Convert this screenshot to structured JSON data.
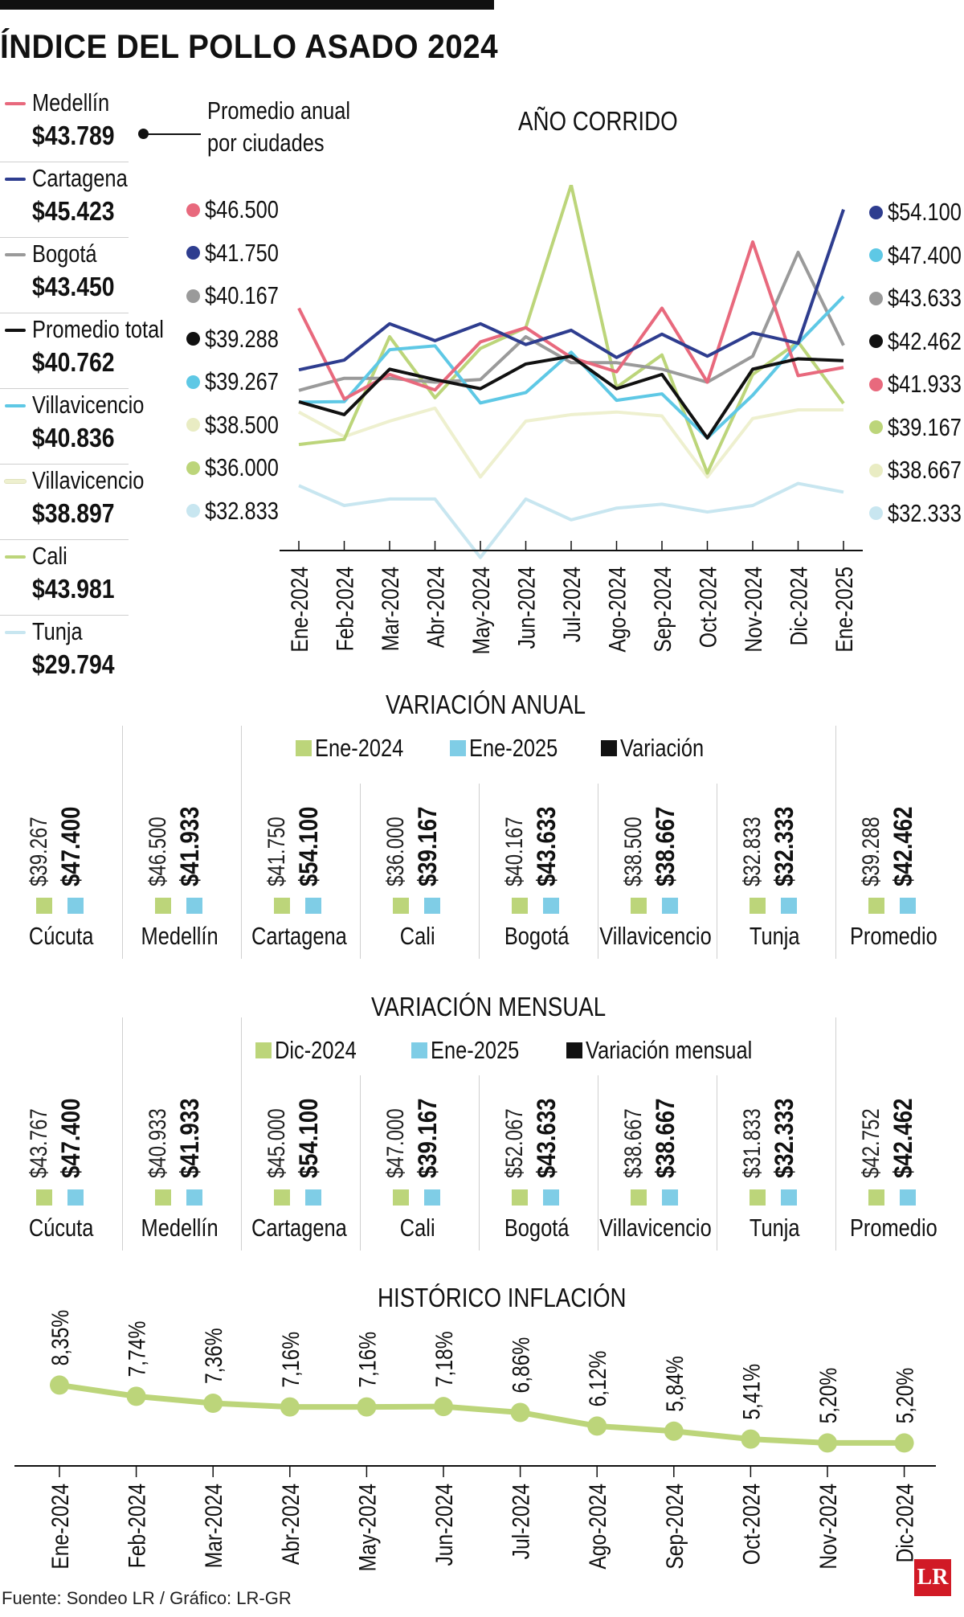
{
  "title": "ÍNDICE DEL POLLO ASADO 2024",
  "legend": {
    "callout": [
      "Promedio anual",
      "por ciudades"
    ],
    "items": [
      {
        "name": "Medellín",
        "value": "$43.789",
        "color": "#e8697d"
      },
      {
        "name": "Cartagena",
        "value": "$45.423",
        "color": "#2e3d8f"
      },
      {
        "name": "Bogotá",
        "value": "$43.450",
        "color": "#9a9a9a"
      },
      {
        "name": "Promedio total",
        "value": "$40.762",
        "color": "#111111"
      },
      {
        "name": "Villavicencio",
        "value": "$40.836",
        "color": "#5ec8e5"
      },
      {
        "name": "Villavicencio",
        "value": "$38.897",
        "color": "#eef0cf"
      },
      {
        "name": "Cali",
        "value": "$43.981",
        "color": "#bcd57a"
      },
      {
        "name": "Tunja",
        "value": "$29.794",
        "color": "#c8e6f0"
      }
    ]
  },
  "chart_data": [
    {
      "type": "line",
      "title": "AÑO CORRIDO",
      "categories": [
        "Ene-2024",
        "Feb-2024",
        "Mar-2024",
        "Abr-2024",
        "May-2024",
        "Jun-2024",
        "Jul-2024",
        "Ago-2024",
        "Sep-2024",
        "Oct-2024",
        "Nov-2024",
        "Dic-2024",
        "Ene-2025"
      ],
      "ylim": [
        30000,
        56000
      ],
      "series": [
        {
          "name": "Tunja",
          "color": "#c8e6f0",
          "start_label": "$32.833",
          "end_label": "$32.333",
          "values": [
            32833,
            31300,
            31800,
            31800,
            27300,
            31800,
            30200,
            31100,
            31400,
            30800,
            31300,
            33000,
            32333
          ]
        },
        {
          "name": "Villavicencio (crema)",
          "color": "#eef0cf",
          "start_label": "$38.500",
          "end_label": "$38.667",
          "values": [
            38500,
            36600,
            37800,
            38800,
            33500,
            37800,
            38300,
            38500,
            38200,
            33500,
            38000,
            38667,
            38667
          ]
        },
        {
          "name": "Cali",
          "color": "#bcd57a",
          "start_label": "$36.000",
          "end_label": "$39.167",
          "values": [
            36000,
            36400,
            44300,
            39600,
            43400,
            45000,
            56000,
            40400,
            42900,
            33800,
            41400,
            43900,
            39167
          ]
        },
        {
          "name": "Bogotá",
          "color": "#9a9a9a",
          "start_label": "$40.167",
          "end_label": "$43.633",
          "values": [
            40167,
            41100,
            41100,
            40800,
            41000,
            44300,
            42300,
            42300,
            41800,
            40800,
            42800,
            50800,
            43633
          ]
        },
        {
          "name": "Villavicencio",
          "color": "#5ec8e5",
          "start_label": "$39.267",
          "end_label": "$47.400",
          "values": [
            39267,
            39300,
            43300,
            43600,
            39200,
            40000,
            43100,
            39400,
            39900,
            36500,
            39800,
            43800,
            47400
          ]
        },
        {
          "name": "Medellín",
          "color": "#e8697d",
          "start_label": "$46.500",
          "end_label": "$41.933",
          "values": [
            46500,
            39500,
            41400,
            40200,
            43900,
            45000,
            42700,
            41600,
            46500,
            40800,
            51600,
            41300,
            41933
          ]
        },
        {
          "name": "Cartagena",
          "color": "#2e3d8f",
          "start_label": "$41.750",
          "end_label": "$54.100",
          "values": [
            41750,
            42500,
            45300,
            44000,
            45300,
            43700,
            44800,
            42700,
            44500,
            42800,
            44600,
            43800,
            54100
          ]
        },
        {
          "name": "Promedio",
          "color": "#111111",
          "start_label": "$39.288",
          "end_label": "$42.462",
          "values": [
            39288,
            38300,
            41800,
            41000,
            40300,
            42200,
            42800,
            40300,
            41400,
            36500,
            41800,
            42600,
            42462
          ]
        }
      ],
      "x_tick_labels": [
        "Ene-2024",
        "Feb-2024",
        "Mar-2024",
        "Abr-2024",
        "May-2024",
        "Jun-2024",
        "Jul-2024",
        "Ago-2024",
        "Sep-2024",
        "Oct-2024",
        "Nov-2024",
        "Dic-2024",
        "Ene-2025"
      ]
    },
    {
      "type": "table",
      "title": "VARIACIÓN ANUAL",
      "legend": [
        {
          "label": "Ene-2024",
          "color": "#bcd57a"
        },
        {
          "label": "Ene-2025",
          "color": "#7fcde6"
        },
        {
          "label": "Variación",
          "color": "#111111"
        }
      ],
      "cities": [
        {
          "city": "Cúcuta",
          "a": "$39.267",
          "b": "$47.400"
        },
        {
          "city": "Medellín",
          "a": "$46.500",
          "b": "$41.933"
        },
        {
          "city": "Cartagena",
          "a": "$41.750",
          "b": "$54.100"
        },
        {
          "city": "Cali",
          "a": "$36.000",
          "b": "$39.167"
        },
        {
          "city": "Bogotá",
          "a": "$40.167",
          "b": "$43.633"
        },
        {
          "city": "Villavicencio",
          "a": "$38.500",
          "b": "$38.667"
        },
        {
          "city": "Tunja",
          "a": "$32.833",
          "b": "$32.333"
        },
        {
          "city": "Promedio",
          "a": "$39.288",
          "b": "$42.462"
        }
      ]
    },
    {
      "type": "table",
      "title": "VARIACIÓN MENSUAL",
      "legend": [
        {
          "label": "Dic-2024",
          "color": "#bcd57a"
        },
        {
          "label": "Ene-2025",
          "color": "#7fcde6"
        },
        {
          "label": "Variación mensual",
          "color": "#111111"
        }
      ],
      "cities": [
        {
          "city": "Cúcuta",
          "a": "$43.767",
          "b": "$47.400"
        },
        {
          "city": "Medellín",
          "a": "$40.933",
          "b": "$41.933"
        },
        {
          "city": "Cartagena",
          "a": "$45.000",
          "b": "$54.100"
        },
        {
          "city": "Cali",
          "a": "$47.000",
          "b": "$39.167"
        },
        {
          "city": "Bogotá",
          "a": "$52.067",
          "b": "$43.633"
        },
        {
          "city": "Villavicencio",
          "a": "$38.667",
          "b": "$38.667"
        },
        {
          "city": "Tunja",
          "a": "$31.833",
          "b": "$32.333"
        },
        {
          "city": "Promedio",
          "a": "$42.752",
          "b": "$42.462"
        }
      ]
    },
    {
      "type": "line",
      "title": "HISTÓRICO INFLACIÓN",
      "color": "#bcd57a",
      "categories": [
        "Ene-2024",
        "Feb-2024",
        "Mar-2024",
        "Abr-2024",
        "May-2024",
        "Jun-2024",
        "Jul-2024",
        "Ago-2024",
        "Sep-2024",
        "Oct-2024",
        "Nov-2024",
        "Dic-2024"
      ],
      "values": [
        8.35,
        7.74,
        7.36,
        7.16,
        7.16,
        7.18,
        6.86,
        6.12,
        5.84,
        5.41,
        5.2,
        5.2
      ],
      "labels": [
        "8,35%",
        "7,74%",
        "7,36%",
        "7,16%",
        "7,16%",
        "7,18%",
        "6,86%",
        "6,12%",
        "5,84%",
        "5,41%",
        "5,20%",
        "5,20%"
      ]
    }
  ],
  "source": "Fuente: Sondeo LR / Gráfico: LR-GR",
  "logo": "LR"
}
